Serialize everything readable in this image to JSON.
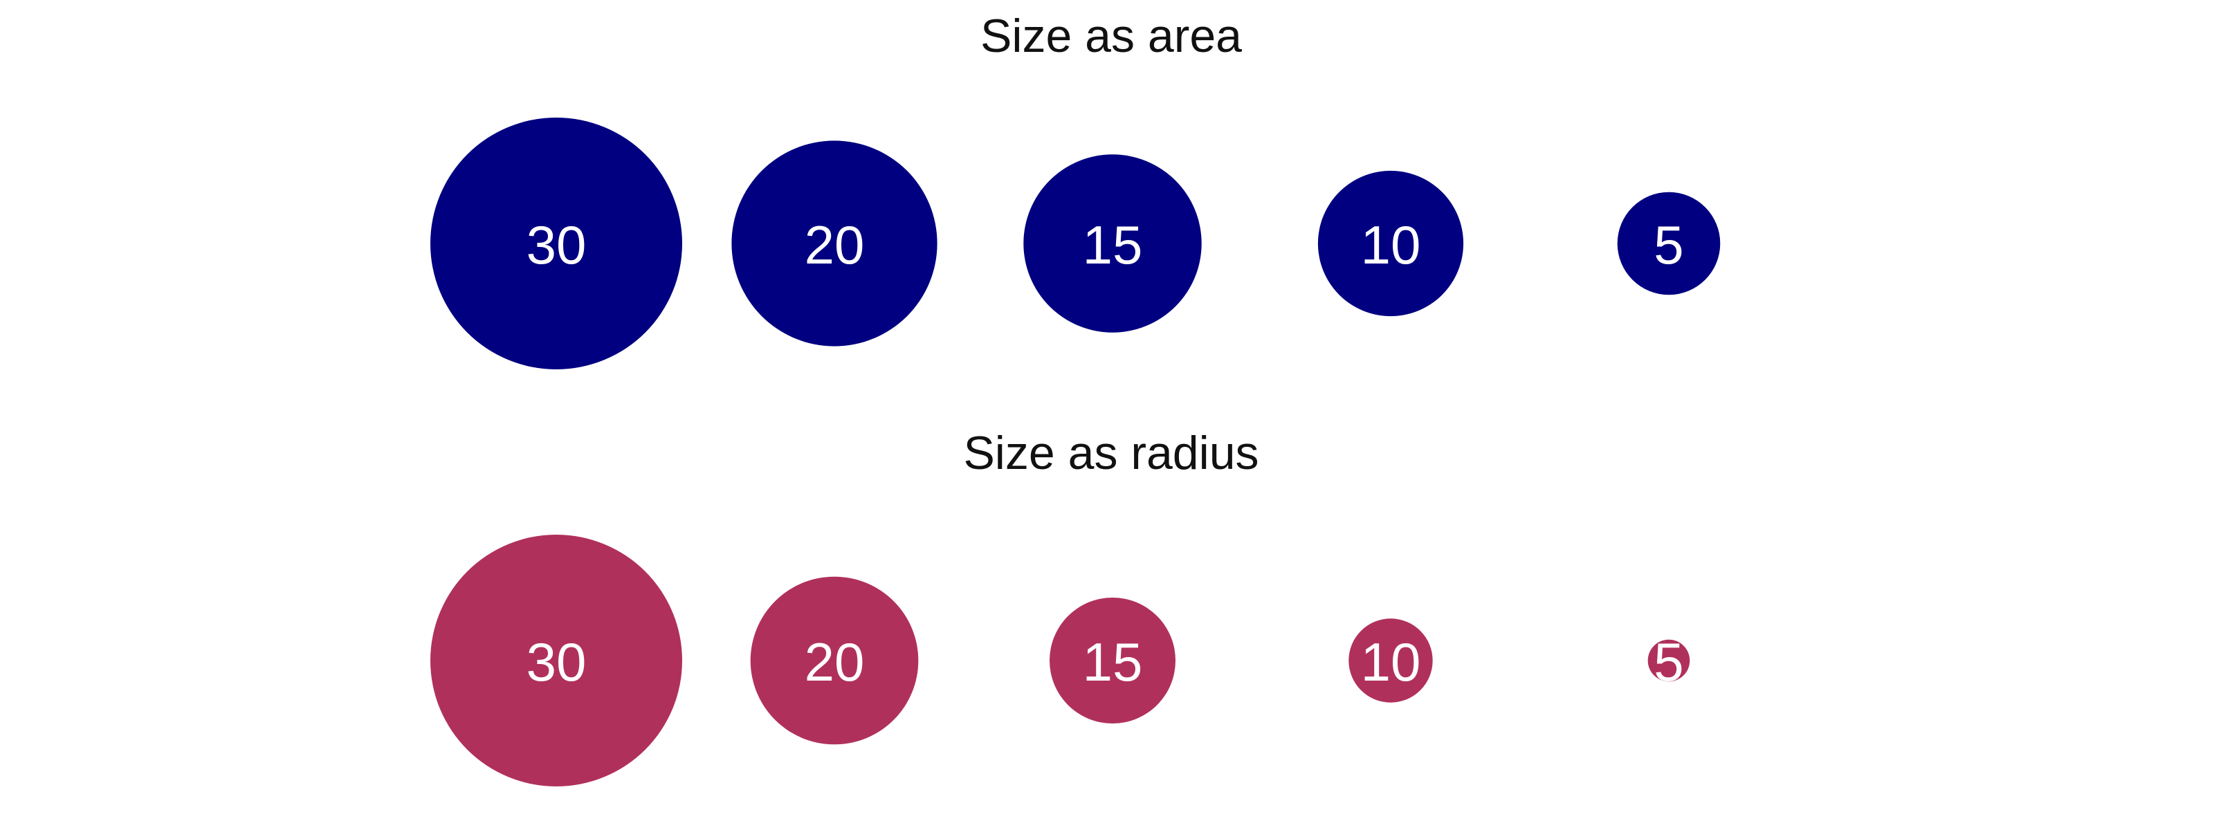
{
  "chart_data": [
    {
      "type": "scatter",
      "title": "Size as area",
      "encoding": "area",
      "color": "#000080",
      "categories": [
        "30",
        "20",
        "15",
        "10",
        "5"
      ],
      "values": [
        30,
        20,
        15,
        10,
        5
      ]
    },
    {
      "type": "scatter",
      "title": "Size as radius",
      "encoding": "radius",
      "color": "#b0305c",
      "categories": [
        "30",
        "20",
        "15",
        "10",
        "5"
      ],
      "values": [
        30,
        20,
        15,
        10,
        5
      ]
    }
  ]
}
